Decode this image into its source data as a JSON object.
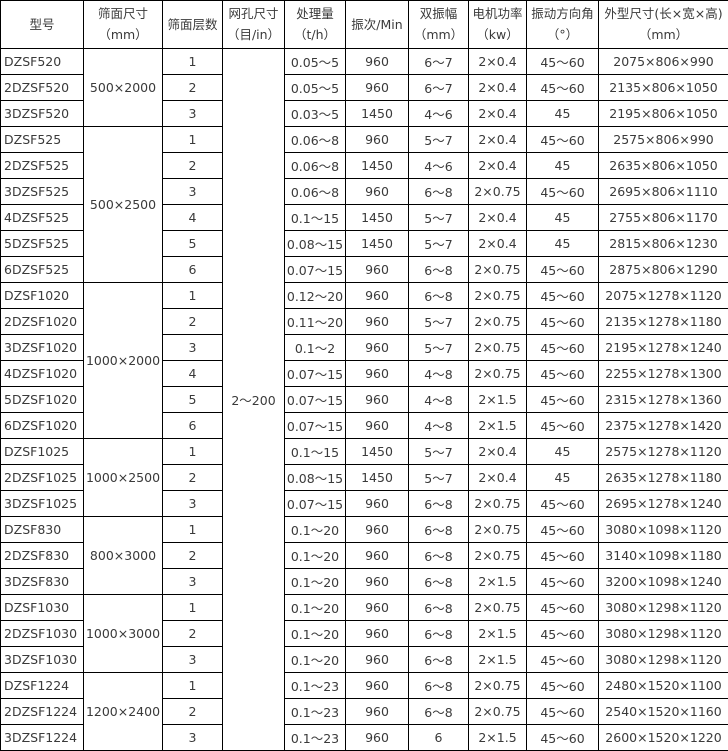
{
  "headers": [
    {
      "line1": "型号",
      "line2": ""
    },
    {
      "line1": "筛面尺寸",
      "line2": "（mm）"
    },
    {
      "line1": "筛面层数",
      "line2": ""
    },
    {
      "line1": "网孔尺寸",
      "line2": "（目/in）"
    },
    {
      "line1": "处理量",
      "line2": "（t/h）"
    },
    {
      "line1": "振次/Min",
      "line2": ""
    },
    {
      "line1": "双振幅",
      "line2": "（mm）"
    },
    {
      "line1": "电机功率",
      "line2": "（kw）"
    },
    {
      "line1": "振动方向角",
      "line2": "（°）"
    },
    {
      "line1": "外型尺寸(长×宽×高)",
      "line2": "（mm）"
    }
  ],
  "mesh_size": "2～200",
  "groups": [
    {
      "screen_size": "500×2000",
      "rows": [
        [
          "DZSF520",
          "1",
          "0.05～5",
          "960",
          "6～7",
          "2×0.4",
          "45～60",
          "2075×806×990"
        ],
        [
          "2DZSF520",
          "2",
          "0.05～5",
          "960",
          "6～7",
          "2×0.4",
          "45～60",
          "2135×806×1050"
        ],
        [
          "3DZSF520",
          "3",
          "0.03～5",
          "1450",
          "4～6",
          "2×0.4",
          "45",
          "2195×806×1050"
        ]
      ]
    },
    {
      "screen_size": "500×2500",
      "rows": [
        [
          "DZSF525",
          "1",
          "0.06～8",
          "960",
          "5～7",
          "2×0.4",
          "45～60",
          "2575×806×990"
        ],
        [
          "2DZSF525",
          "2",
          "0.06～8",
          "1450",
          "4～6",
          "2×0.4",
          "45",
          "2635×806×1050"
        ],
        [
          "3DZSF525",
          "3",
          "0.06～8",
          "960",
          "6～8",
          "2×0.75",
          "45～60",
          "2695×806×1110"
        ],
        [
          "4DZSF525",
          "4",
          "0.1～15",
          "1450",
          "5～7",
          "2×0.4",
          "45",
          "2755×806×1170"
        ],
        [
          "5DZSF525",
          "5",
          "0.08～15",
          "1450",
          "5～7",
          "2×0.4",
          "45",
          "2815×806×1230"
        ],
        [
          "6DZSF525",
          "6",
          "0.07～15",
          "960",
          "6～8",
          "2×0.75",
          "45～60",
          "2875×806×1290"
        ]
      ]
    },
    {
      "screen_size": "1000×2000",
      "rows": [
        [
          "DZSF1020",
          "1",
          "0.12～20",
          "960",
          "6～8",
          "2×0.75",
          "45～60",
          "2075×1278×1120"
        ],
        [
          "2DZSF1020",
          "2",
          "0.11～20",
          "960",
          "5～7",
          "2×0.75",
          "45～60",
          "2135×1278×1180"
        ],
        [
          "3DZSF1020",
          "3",
          "0.1～2",
          "960",
          "5～7",
          "2×0.75",
          "45～60",
          "2195×1278×1240"
        ],
        [
          "4DZSF1020",
          "4",
          "0.07～15",
          "960",
          "4～8",
          "2×0.75",
          "45～60",
          "2255×1278×1300"
        ],
        [
          "5DZSF1020",
          "5",
          "0.07～15",
          "960",
          "4～8",
          "2×1.5",
          "45～60",
          "2315×1278×1360"
        ],
        [
          "6DZSF1020",
          "6",
          "0.07～15",
          "960",
          "4～8",
          "2×1.5",
          "45～60",
          "2375×1278×1420"
        ]
      ]
    },
    {
      "screen_size": "1000×2500",
      "rows": [
        [
          "DZSF1025",
          "1",
          "0.1～15",
          "1450",
          "5～7",
          "2×0.4",
          "45",
          "2575×1278×1120"
        ],
        [
          "2DZSF1025",
          "2",
          "0.08～15",
          "1450",
          "5～7",
          "2×0.4",
          "45",
          "2635×1278×1180"
        ],
        [
          "3DZSF1025",
          "3",
          "0.07～15",
          "960",
          "6～8",
          "2×0.75",
          "45～60",
          "2695×1278×1240"
        ]
      ]
    },
    {
      "screen_size": "800×3000",
      "rows": [
        [
          "DZSF830",
          "1",
          "0.1～20",
          "960",
          "6～8",
          "2×0.75",
          "45～60",
          "3080×1098×1120"
        ],
        [
          "2DZSF830",
          "2",
          "0.1～20",
          "960",
          "6～8",
          "2×0.75",
          "45～60",
          "3140×1098×1180"
        ],
        [
          "3DZSF830",
          "3",
          "0.1～20",
          "960",
          "6～8",
          "2×1.5",
          "45～60",
          "3200×1098×1240"
        ]
      ]
    },
    {
      "screen_size": "1000×3000",
      "rows": [
        [
          "DZSF1030",
          "1",
          "0.1～20",
          "960",
          "6～8",
          "2×0.75",
          "45～60",
          "3080×1298×1120"
        ],
        [
          "2DZSF1030",
          "2",
          "0.1～20",
          "960",
          "6～8",
          "2×1.5",
          "45～60",
          "3080×1298×1120"
        ],
        [
          "3DZSF1030",
          "3",
          "0.1～20",
          "960",
          "6～8",
          "2×1.5",
          "45～60",
          "3080×1298×1120"
        ]
      ]
    },
    {
      "screen_size": "1200×2400",
      "rows": [
        [
          "DZSF1224",
          "1",
          "0.1～23",
          "960",
          "6～8",
          "2×0.75",
          "45～60",
          "2480×1520×1100"
        ],
        [
          "2DZSF1224",
          "2",
          "0.1～23",
          "960",
          "6～8",
          "2×0.75",
          "45～60",
          "2540×1520×1160"
        ],
        [
          "3DZSF1224",
          "3",
          "0.1～23",
          "960",
          "6",
          "2×1.5",
          "45～60",
          "2600×1520×1220"
        ]
      ]
    }
  ]
}
